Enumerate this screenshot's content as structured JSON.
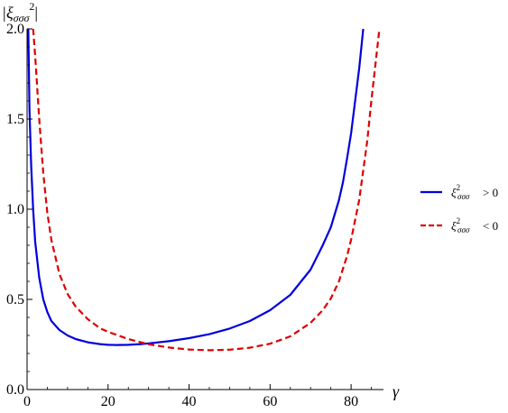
{
  "chart_data": {
    "type": "line",
    "ylabel": "|ξσσσ²|",
    "xlabel": "γ",
    "xlim": [
      0,
      88
    ],
    "ylim": [
      0,
      2.0
    ],
    "xticks": [
      0,
      20,
      40,
      60,
      80
    ],
    "yticks": [
      0.0,
      0.5,
      1.0,
      1.5,
      2.0
    ],
    "xtick_labels": [
      "0",
      "20",
      "40",
      "60",
      "80"
    ],
    "ytick_labels": [
      "0.0",
      "0.5",
      "1.0",
      "1.5",
      "2.0"
    ],
    "legend_position": "right",
    "series": [
      {
        "name": "ξσσσ² > 0",
        "legend_symbol": "ξ",
        "legend_sup": "2",
        "legend_sub": "σσσ",
        "legend_op": "> 0",
        "color": "#0000dd",
        "style": "solid",
        "x": [
          0.3,
          0.6,
          1,
          1.5,
          2,
          3,
          4,
          5,
          6,
          8,
          10,
          12,
          15,
          18,
          20,
          22,
          25,
          28,
          30,
          35,
          40,
          45,
          50,
          55,
          60,
          65,
          70,
          73,
          75,
          77,
          78,
          79,
          80,
          81,
          82,
          83
        ],
        "y": [
          2.0,
          1.55,
          1.25,
          1.0,
          0.82,
          0.62,
          0.5,
          0.43,
          0.38,
          0.33,
          0.3,
          0.28,
          0.262,
          0.252,
          0.248,
          0.247,
          0.248,
          0.252,
          0.256,
          0.268,
          0.285,
          0.307,
          0.338,
          0.38,
          0.44,
          0.525,
          0.665,
          0.8,
          0.9,
          1.05,
          1.15,
          1.28,
          1.42,
          1.6,
          1.78,
          2.0
        ]
      },
      {
        "name": "ξσσσ² < 0",
        "legend_symbol": "ξ",
        "legend_sup": "2",
        "legend_sub": "σσσ",
        "legend_op": "< 0",
        "color": "#dd0000",
        "style": "dashed",
        "x": [
          1.5,
          2,
          3,
          4,
          5,
          6,
          8,
          10,
          12,
          15,
          18,
          20,
          25,
          30,
          35,
          40,
          45,
          50,
          55,
          60,
          65,
          70,
          73,
          75,
          77,
          79,
          80,
          82,
          84,
          85,
          86,
          87
        ],
        "y": [
          2.0,
          1.85,
          1.5,
          1.2,
          0.98,
          0.83,
          0.64,
          0.53,
          0.46,
          0.39,
          0.34,
          0.32,
          0.28,
          0.251,
          0.233,
          0.222,
          0.218,
          0.221,
          0.232,
          0.254,
          0.295,
          0.37,
          0.44,
          0.505,
          0.6,
          0.74,
          0.83,
          1.05,
          1.38,
          1.6,
          1.8,
          2.0
        ]
      }
    ]
  }
}
